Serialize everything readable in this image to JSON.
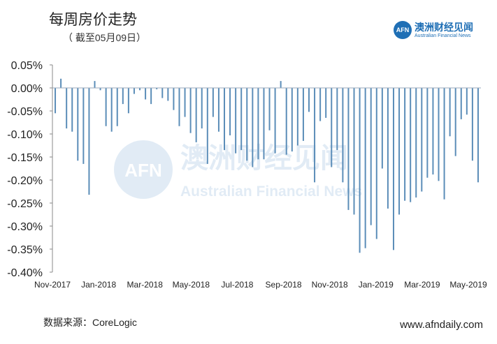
{
  "header": {
    "title": "每周房价走势",
    "subtitle": "（ 截至05月09日）"
  },
  "logo": {
    "mark": "AFN",
    "name_cn": "澳洲财经见闻",
    "name_en": "Australian Financial News",
    "brand_color": "#1f6fb5"
  },
  "watermark": {
    "mark": "AFN",
    "name_cn": "澳洲财经见闻",
    "name_en": "Australian Financial News"
  },
  "footer": {
    "source": "数据来源：CoreLogic",
    "site": "www.afndaily.com"
  },
  "chart_data": {
    "type": "bar",
    "title": "",
    "xlabel": "",
    "ylabel": "",
    "ylim": [
      -0.4,
      0.05
    ],
    "yticks": [
      "0.05%",
      "0.00%",
      "-0.05%",
      "-0.10%",
      "-0.15%",
      "-0.20%",
      "-0.25%",
      "-0.30%",
      "-0.35%",
      "-0.40%"
    ],
    "ytick_values": [
      0.05,
      0.0,
      -0.05,
      -0.1,
      -0.15,
      -0.2,
      -0.25,
      -0.3,
      -0.35,
      -0.4
    ],
    "xticks": [
      "Nov-2017",
      "Jan-2018",
      "Mar-2018",
      "May-2018",
      "Jul-2018",
      "Sep-2018",
      "Nov-2018",
      "Jan-2019",
      "Mar-2019",
      "May-2019"
    ],
    "bar_color": "#5b8db8",
    "grid": false,
    "series": [
      {
        "values": [
          -0.055,
          0.02,
          -0.088,
          -0.095,
          -0.158,
          -0.165,
          -0.232,
          0.015,
          -0.005,
          -0.083,
          -0.095,
          -0.083,
          -0.035,
          -0.055,
          -0.013,
          -0.005,
          -0.025,
          -0.035,
          -0.003,
          -0.022,
          -0.028,
          -0.048,
          -0.083,
          -0.063,
          -0.098,
          -0.118,
          -0.088,
          -0.165,
          -0.063,
          -0.095,
          -0.135,
          -0.103,
          -0.142,
          -0.135,
          -0.158,
          -0.172,
          -0.155,
          -0.155,
          -0.092,
          -0.142,
          0.015,
          -0.145,
          -0.138,
          -0.125,
          -0.115,
          -0.052,
          -0.205,
          -0.072,
          -0.065,
          -0.172,
          -0.135,
          -0.205,
          -0.265,
          -0.275,
          -0.358,
          -0.348,
          -0.298,
          -0.328,
          -0.175,
          -0.262,
          -0.352,
          -0.275,
          -0.245,
          -0.248,
          -0.238,
          -0.225,
          -0.195,
          -0.188,
          -0.202,
          -0.242,
          -0.105,
          -0.148,
          -0.068,
          -0.058,
          -0.158,
          -0.205
        ]
      }
    ]
  }
}
